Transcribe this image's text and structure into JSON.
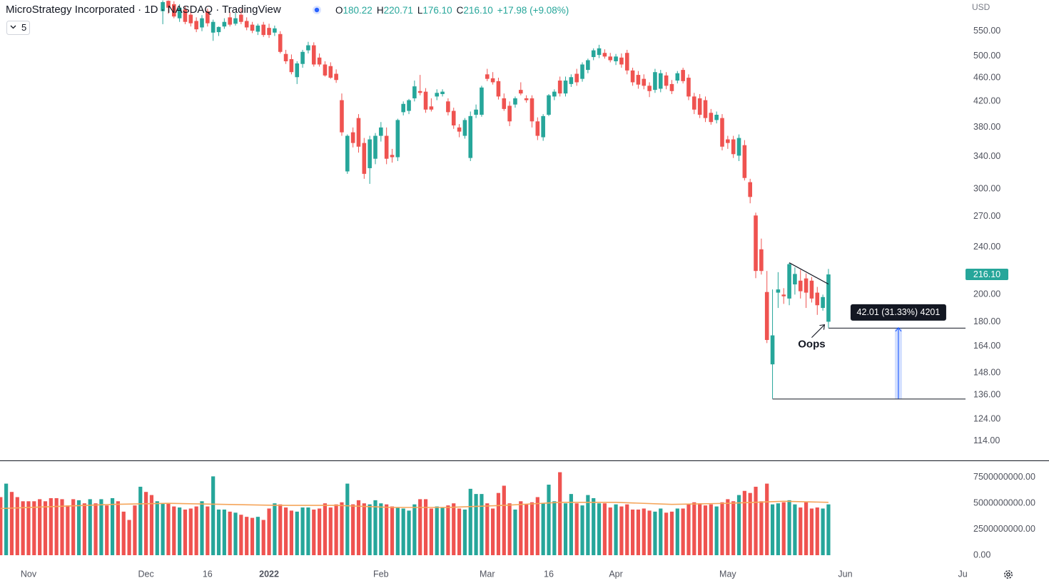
{
  "chart_data": {
    "type": "candlestick",
    "title": "MicroStrategy Incorporated · 1D · NASDAQ · TradingView",
    "legend": [
      {
        "key": "O",
        "value": "180.22"
      },
      {
        "key": "H",
        "value": "220.71"
      },
      {
        "key": "L",
        "value": "176.10"
      },
      {
        "key": "C",
        "value": "216.10"
      }
    ],
    "change": "+17.98 (+9.08%)",
    "indicator": "5",
    "currency": "USD",
    "last_price_label": "216.10",
    "up_color": "#26a69a",
    "down_color": "#ef5350",
    "log_scale": true,
    "grid": false,
    "xlim": [
      -5.1,
      167.5
    ],
    "xticks": [
      {
        "value": 0,
        "label": "Nov"
      },
      {
        "value": 21,
        "label": "Dec"
      },
      {
        "value": 32,
        "label": "16"
      },
      {
        "value": 43,
        "label": "2022"
      },
      {
        "value": 63,
        "label": "Feb"
      },
      {
        "value": 82,
        "label": "Mar"
      },
      {
        "value": 93,
        "label": "16"
      },
      {
        "value": 105,
        "label": "Apr"
      },
      {
        "value": 125,
        "label": "May"
      },
      {
        "value": 146,
        "label": "Jun"
      },
      {
        "value": 167,
        "label": "Ju"
      }
    ],
    "ylim": [
      105.5,
      620
    ],
    "yticks": [
      {
        "value": 550,
        "label": "550.00"
      },
      {
        "value": 500,
        "label": "500.00"
      },
      {
        "value": 460,
        "label": "460.00"
      },
      {
        "value": 420,
        "label": "420.00"
      },
      {
        "value": 380,
        "label": "380.00"
      },
      {
        "value": 340,
        "label": "340.00"
      },
      {
        "value": 300,
        "label": "300.00"
      },
      {
        "value": 270,
        "label": "270.00"
      },
      {
        "value": 240,
        "label": "240.00"
      },
      {
        "value": 200,
        "label": "200.00"
      },
      {
        "value": 180,
        "label": "180.00"
      },
      {
        "value": 164,
        "label": "164.00"
      },
      {
        "value": 148,
        "label": "148.00"
      },
      {
        "value": 136,
        "label": "136.00"
      },
      {
        "value": 124,
        "label": "124.00"
      },
      {
        "value": 114,
        "label": "114.00"
      }
    ],
    "x": [
      -5,
      -4,
      -3,
      -2,
      -1,
      0,
      1,
      2,
      3,
      4,
      5,
      6,
      7,
      8,
      9,
      10,
      11,
      12,
      13,
      14,
      15,
      16,
      17,
      18,
      19,
      20,
      21,
      22,
      23,
      24,
      25,
      26,
      27,
      28,
      29,
      30,
      31,
      32,
      33,
      34,
      35,
      36,
      37,
      38,
      39,
      40,
      41,
      42,
      43,
      44,
      45,
      46,
      47,
      48,
      49,
      50,
      51,
      52,
      53,
      54,
      55,
      56,
      57,
      58,
      59,
      60,
      61,
      62,
      63,
      64,
      65,
      66,
      67,
      68,
      69,
      70,
      71,
      72,
      73,
      74,
      75,
      76,
      77,
      78,
      79,
      80,
      81,
      82,
      83,
      84,
      85,
      86,
      87,
      88,
      89,
      90,
      91,
      92,
      93,
      94,
      95,
      96,
      97,
      98,
      99,
      100,
      101,
      102,
      103,
      104,
      105,
      106,
      107,
      108,
      109,
      110,
      111,
      112,
      113,
      114,
      115,
      116,
      117,
      118,
      119,
      120,
      121,
      122,
      123,
      124,
      125,
      126,
      127,
      128,
      129,
      130,
      131,
      132,
      133,
      134,
      135,
      136,
      137,
      138,
      139,
      140,
      141,
      142,
      143
    ],
    "open": [
      null,
      null,
      null,
      null,
      null,
      null,
      null,
      null,
      null,
      null,
      null,
      null,
      null,
      null,
      null,
      null,
      null,
      null,
      null,
      null,
      null,
      null,
      null,
      null,
      null,
      null,
      null,
      null,
      null,
      594,
      618,
      610,
      578,
      598,
      586,
      572,
      558,
      594,
      547,
      548,
      560,
      580,
      566,
      586,
      572,
      564,
      549,
      564,
      557,
      547,
      544,
      504,
      494,
      461,
      485,
      511,
      521,
      497,
      484,
      481,
      467,
      422,
      321,
      373,
      394,
      358,
      325,
      337,
      368,
      368,
      342,
      339,
      403,
      405,
      425,
      437,
      436,
      412,
      428,
      432,
      420,
      405,
      380,
      368,
      338,
      399,
      399,
      466,
      459,
      454,
      425,
      413,
      415,
      439,
      425,
      425,
      389,
      366,
      399,
      428,
      455,
      433,
      449,
      467,
      458,
      474,
      498,
      502,
      506,
      499,
      490,
      497,
      506,
      473,
      465,
      458,
      446,
      439,
      441,
      464,
      449,
      455,
      474,
      460,
      428,
      425,
      422,
      402,
      391,
      394,
      363,
      363,
      341,
      355,
      308,
      271,
      238,
      202,
      153,
      201.5,
      200,
      197,
      208,
      211,
      212.8,
      211,
      201.5,
      190,
      180.22
    ],
    "high": [
      null,
      null,
      null,
      null,
      null,
      null,
      null,
      null,
      null,
      null,
      null,
      null,
      null,
      null,
      null,
      null,
      null,
      null,
      null,
      null,
      null,
      null,
      null,
      null,
      null,
      null,
      null,
      null,
      null,
      619,
      619,
      617,
      610,
      605,
      595,
      580,
      585,
      600,
      575,
      560,
      578,
      592,
      590,
      600,
      580,
      570,
      566,
      570,
      566,
      562,
      550,
      512,
      503,
      490,
      512,
      528,
      527,
      505,
      490,
      488,
      475,
      433,
      370,
      380,
      400,
      365,
      368,
      372,
      388,
      380,
      350,
      393,
      420,
      424,
      455,
      465,
      442,
      425,
      440,
      440,
      425,
      410,
      385,
      394,
      404,
      415,
      446,
      476,
      470,
      460,
      433,
      420,
      428,
      452,
      430,
      430,
      395,
      400,
      432,
      440,
      462,
      462,
      466,
      476,
      488,
      495,
      515,
      522,
      513,
      506,
      504,
      505,
      512,
      478,
      472,
      466,
      452,
      476,
      474,
      470,
      456,
      472,
      478,
      466,
      434,
      432,
      428,
      408,
      404,
      400,
      368,
      368,
      370,
      362,
      312,
      274,
      248,
      219,
      204,
      218,
      205,
      226,
      222,
      220,
      217,
      214,
      206,
      200,
      220.71
    ],
    "low": [
      null,
      null,
      null,
      null,
      null,
      null,
      null,
      null,
      null,
      null,
      null,
      null,
      null,
      null,
      null,
      null,
      null,
      null,
      null,
      null,
      null,
      null,
      null,
      null,
      null,
      null,
      null,
      null,
      null,
      565,
      588,
      578,
      570,
      565,
      560,
      548,
      550,
      560,
      530,
      540,
      555,
      560,
      562,
      565,
      552,
      546,
      542,
      538,
      536,
      540,
      505,
      485,
      466,
      449,
      478,
      505,
      480,
      480,
      462,
      458,
      451,
      368,
      318,
      352,
      345,
      312,
      306,
      330,
      360,
      330,
      332,
      334,
      398,
      400,
      420,
      430,
      402,
      404,
      422,
      428,
      398,
      378,
      366,
      364,
      334,
      394,
      396,
      454,
      448,
      423,
      405,
      382,
      410,
      430,
      418,
      380,
      362,
      361,
      397,
      422,
      428,
      428,
      444,
      446,
      453,
      468,
      492,
      496,
      495,
      488,
      483,
      478,
      466,
      446,
      441,
      440,
      427,
      434,
      435,
      440,
      432,
      450,
      450,
      422,
      400,
      394,
      388,
      384,
      386,
      348,
      350,
      338,
      334,
      310,
      284,
      213,
      216,
      166,
      134.09,
      190,
      193,
      192,
      200,
      197,
      190,
      194,
      185,
      188,
      176.1
    ],
    "close": [
      null,
      null,
      null,
      null,
      null,
      null,
      null,
      null,
      null,
      null,
      null,
      null,
      null,
      null,
      null,
      null,
      null,
      null,
      null,
      null,
      null,
      null,
      null,
      null,
      null,
      null,
      null,
      null,
      null,
      615,
      602,
      582,
      602,
      570,
      567,
      554,
      578,
      567,
      570,
      559,
      570,
      564,
      578,
      570,
      558,
      551,
      562,
      542,
      542,
      556,
      508,
      490,
      470,
      486,
      508,
      521,
      484,
      484,
      464,
      460,
      456,
      373,
      368,
      358,
      353,
      318,
      363,
      368,
      380,
      337,
      339,
      391,
      416,
      422,
      445,
      434,
      407,
      407,
      434,
      436,
      403,
      383,
      374,
      391,
      397,
      407,
      443,
      458,
      452,
      428,
      408,
      389,
      425,
      433,
      422,
      389,
      368,
      397,
      430,
      436,
      433,
      455,
      461,
      452,
      484,
      492,
      511,
      515,
      499,
      492,
      499,
      484,
      473,
      452,
      448,
      446,
      437,
      470,
      468,
      446,
      437,
      468,
      454,
      428,
      407,
      399,
      394,
      388,
      399,
      353,
      358,
      343,
      365,
      313,
      291,
      219,
      219,
      168,
      171,
      204,
      198.7,
      224.8,
      216.5,
      202.6,
      201.5,
      197,
      192,
      198.12,
      216.1
    ],
    "volume": {
      "ylim": [
        0,
        9000000000.0
      ],
      "yticks": [
        {
          "value": 7500000000,
          "label": "7500000000.00"
        },
        {
          "value": 5000000000,
          "label": "5000000000.00"
        },
        {
          "value": 2500000000,
          "label": "2500000000.00"
        },
        {
          "value": 0,
          "label": "0.00"
        }
      ],
      "values": [
        5600000000.0,
        6900000000.0,
        6100000000.0,
        5600000000.0,
        5200000000.0,
        5200000000.0,
        5200000000.0,
        5400000000.0,
        5200000000.0,
        5500000000.0,
        5500000000.0,
        5400000000.0,
        4800000000.0,
        5400000000.0,
        5300000000.0,
        5000000000.0,
        5400000000.0,
        5000000000.0,
        5400000000.0,
        4800000000.0,
        5500000000.0,
        5200000000.0,
        4200000000.0,
        3400000000.0,
        4800000000.0,
        6600000000.0,
        6100000000.0,
        5800000000.0,
        5200000000.0,
        5000000000.0,
        5000000000.0,
        4700000000.0,
        4600000000.0,
        4400000000.0,
        4500000000.0,
        4700000000.0,
        5200000000.0,
        4700000000.0,
        7600000000.0,
        4400000000.0,
        4400000000.0,
        4200000000.0,
        4100000000.0,
        3900000000.0,
        3700000000.0,
        3600000000.0,
        3700000000.0,
        3400000000.0,
        4500000000.0,
        5000000000.0,
        4900000000.0,
        4600000000.0,
        4300000000.0,
        4200000000.0,
        4600000000.0,
        4600000000.0,
        4400000000.0,
        4500000000.0,
        5000000000.0,
        4600000000.0,
        4900000000.0,
        5100000000.0,
        6900000000.0,
        4900000000.0,
        5300000000.0,
        5000000000.0,
        4900000000.0,
        5300000000.0,
        5000000000.0,
        4900000000.0,
        4700000000.0,
        4600000000.0,
        4500000000.0,
        4300000000.0,
        4900000000.0,
        5400000000.0,
        5400000000.0,
        4500000000.0,
        4700000000.0,
        4600000000.0,
        4800000000.0,
        5000000000.0,
        4500000000.0,
        4400000000.0,
        6400000000.0,
        5900000000.0,
        5900000000.0,
        5000000000.0,
        4500000000.0,
        6000000000.0,
        6700000000.0,
        5000000000.0,
        4400000000.0,
        5200000000.0,
        4900000000.0,
        5100000000.0,
        5600000000.0,
        5000000000.0,
        6800000000.0,
        5200000000.0,
        8000000000.0,
        5000000000.0,
        5900000000.0,
        5000000000.0,
        4800000000.0,
        5800000000.0,
        5500000000.0,
        5000000000.0,
        5000000000.0,
        4600000000.0,
        4900000000.0,
        4700000000.0,
        4900000000.0,
        4400000000.0,
        4400000000.0,
        4500000000.0,
        4300000000.0,
        4200000000.0,
        4500000000.0,
        4100000000.0,
        4200000000.0,
        4500000000.0,
        4500000000.0,
        4900000000.0,
        5100000000.0,
        5000000000.0,
        4800000000.0,
        4900000000.0,
        4700000000.0,
        5100000000.0,
        5400000000.0,
        5200000000.0,
        5800000000.0,
        6200000000.0,
        6000000000.0,
        6600000000.0,
        5200000000.0,
        6900000000.0,
        4900000000.0,
        5000000000.0,
        5100000000.0,
        5300000000.0,
        4900000000.0,
        4600000000.0,
        5100000000.0,
        4500000000.0,
        4600000000.0,
        4500000000.0,
        4900000000.0
      ],
      "colors": [
        "#ef5350",
        "#26a69a",
        "#ef5350",
        "#ef5350",
        "#ef5350",
        "#ef5350",
        "#ef5350",
        "#ef5350",
        "#ef5350",
        "#ef5350",
        "#ef5350",
        "#ef5350",
        "#ef5350",
        "#ef5350",
        "#26a69a",
        "#ef5350",
        "#26a69a",
        "#ef5350",
        "#26a69a",
        "#ef5350",
        "#26a69a",
        "#ef5350",
        "#ef5350",
        "#ef5350",
        "#ef5350",
        "#26a69a",
        "#ef5350",
        "#ef5350",
        "#26a69a",
        "#26a69a",
        "#ef5350",
        "#ef5350",
        "#26a69a",
        "#ef5350",
        "#ef5350",
        "#ef5350",
        "#26a69a",
        "#ef5350",
        "#26a69a",
        "#26a69a",
        "#26a69a",
        "#ef5350",
        "#26a69a",
        "#ef5350",
        "#ef5350",
        "#ef5350",
        "#26a69a",
        "#ef5350",
        "#ef5350",
        "#26a69a",
        "#ef5350",
        "#ef5350",
        "#ef5350",
        "#26a69a",
        "#26a69a",
        "#26a69a",
        "#ef5350",
        "#ef5350",
        "#ef5350",
        "#ef5350",
        "#ef5350",
        "#ef5350",
        "#26a69a",
        "#ef5350",
        "#ef5350",
        "#ef5350",
        "#26a69a",
        "#26a69a",
        "#26a69a",
        "#ef5350",
        "#ef5350",
        "#26a69a",
        "#26a69a",
        "#26a69a",
        "#26a69a",
        "#ef5350",
        "#ef5350",
        "#ef5350",
        "#26a69a",
        "#26a69a",
        "#ef5350",
        "#ef5350",
        "#ef5350",
        "#26a69a",
        "#26a69a",
        "#26a69a",
        "#26a69a",
        "#ef5350",
        "#ef5350",
        "#ef5350",
        "#ef5350",
        "#ef5350",
        "#26a69a",
        "#ef5350",
        "#ef5350",
        "#ef5350",
        "#ef5350",
        "#26a69a",
        "#26a69a",
        "#26a69a",
        "#ef5350",
        "#26a69a",
        "#26a69a",
        "#ef5350",
        "#26a69a",
        "#26a69a",
        "#26a69a",
        "#26a69a",
        "#ef5350",
        "#ef5350",
        "#26a69a",
        "#ef5350",
        "#ef5350",
        "#ef5350",
        "#ef5350",
        "#ef5350",
        "#ef5350",
        "#26a69a",
        "#26a69a",
        "#ef5350",
        "#ef5350",
        "#26a69a",
        "#ef5350",
        "#ef5350",
        "#ef5350",
        "#ef5350",
        "#ef5350",
        "#ef5350",
        "#26a69a",
        "#ef5350",
        "#ef5350",
        "#ef5350",
        "#26a69a",
        "#ef5350",
        "#ef5350",
        "#ef5350",
        "#ef5350",
        "#ef5350",
        "#26a69a",
        "#26a69a",
        "#ef5350",
        "#26a69a",
        "#26a69a",
        "#ef5350",
        "#ef5350",
        "#ef5350",
        "#ef5350",
        "#26a69a",
        "#26a69a"
      ],
      "ma": {
        "color": "#f5a55a",
        "x": [
          -5,
          5,
          15,
          25,
          35,
          45,
          55,
          65,
          75,
          85,
          95,
          105,
          115,
          125,
          135,
          143
        ],
        "values": [
          4500000000.0,
          4700000000.0,
          4900000000.0,
          5000000000.0,
          4900000000.0,
          4800000000.0,
          4800000000.0,
          4600000000.0,
          4600000000.0,
          4800000000.0,
          5100000000.0,
          5100000000.0,
          4900000000.0,
          5000000000.0,
          5200000000.0,
          5100000000.0
        ]
      }
    },
    "trendline": {
      "x": [
        136,
        143
      ],
      "y": [
        226,
        208.2
      ]
    },
    "rays": [
      {
        "x": 133,
        "y": 134.09
      },
      {
        "x": 143,
        "y": 176.1
      }
    ],
    "measure": {
      "x": 155.5,
      "from": 134.09,
      "to": 176.1,
      "label": "42.01 (31.33%) 4201"
    },
    "note": {
      "text": "Oops",
      "x": 140,
      "y": 165
    }
  }
}
